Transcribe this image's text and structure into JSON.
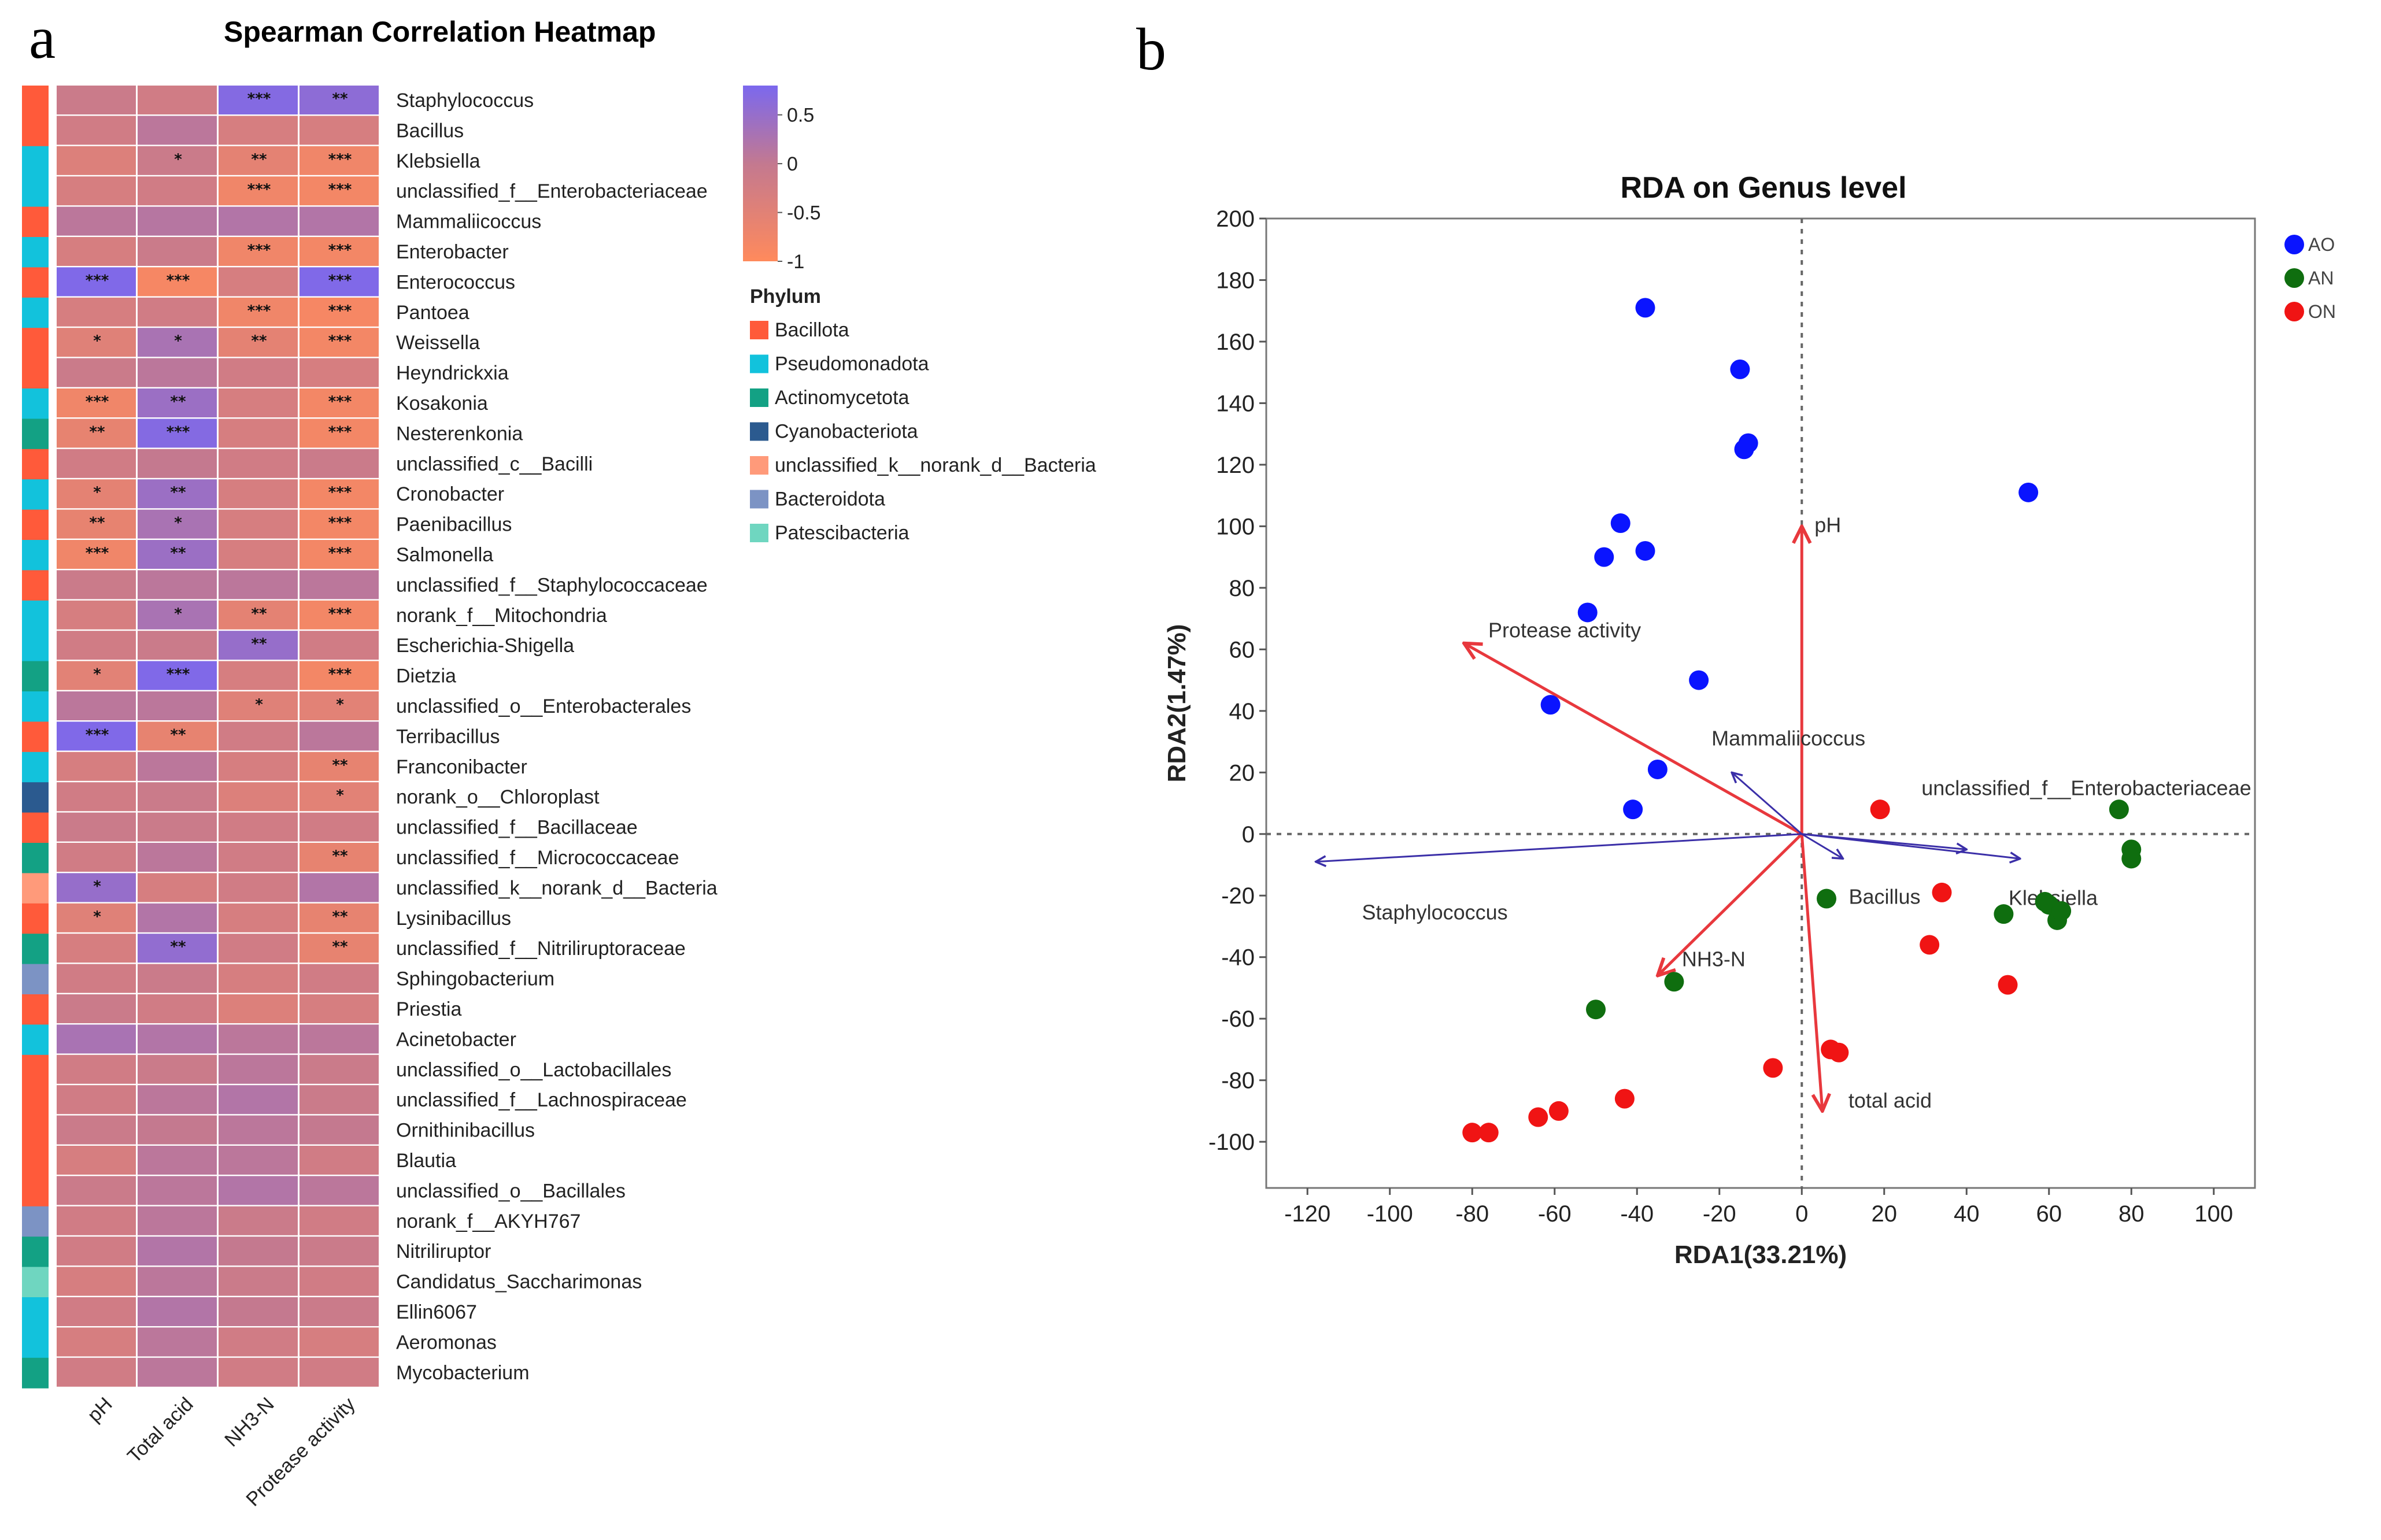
{
  "panels": {
    "a": "a",
    "b": "b"
  },
  "heatmap": {
    "title": "Spearman Correlation Heatmap",
    "columns": [
      "pH",
      "Total acid",
      "NH3-N",
      "Protease activity"
    ],
    "colorbar": {
      "ticks": [
        "0.5",
        "0",
        "-0.5",
        "-1"
      ],
      "range": [
        -1,
        0.8
      ],
      "high_color": "#7b68ee",
      "mid_color": "#c4798f",
      "low_color": "#ff8a5c"
    },
    "phylum_legend_title": "Phylum",
    "phyla": [
      {
        "name": "Bacillota",
        "color": "#ff5a3a"
      },
      {
        "name": "Pseudomonadota",
        "color": "#12c2dc"
      },
      {
        "name": "Actinomycetota",
        "color": "#13a184"
      },
      {
        "name": "Cyanobacteriota",
        "color": "#2b5a8f"
      },
      {
        "name": "unclassified_k__norank_d__Bacteria",
        "color": "#ff9a7a"
      },
      {
        "name": "Bacteroidota",
        "color": "#7c93c4"
      },
      {
        "name": "Patescibacteria",
        "color": "#6fd6c0"
      }
    ],
    "rows": [
      {
        "genus": "Staphylococcus",
        "phylum": 0,
        "values": [
          -0.1,
          -0.2,
          0.7,
          0.6
        ],
        "stars": [
          "",
          "",
          "***",
          "**"
        ]
      },
      {
        "genus": "Bacillus",
        "phylum": 0,
        "values": [
          -0.2,
          0.1,
          -0.3,
          -0.3
        ],
        "stars": [
          "",
          "",
          "",
          ""
        ]
      },
      {
        "genus": "Klebsiella",
        "phylum": 1,
        "values": [
          -0.4,
          -0.1,
          -0.55,
          -0.75
        ],
        "stars": [
          "",
          "*",
          "**",
          "***"
        ]
      },
      {
        "genus": "unclassified_f__Enterobacteriaceae",
        "phylum": 1,
        "values": [
          -0.3,
          -0.2,
          -0.75,
          -0.8
        ],
        "stars": [
          "",
          "",
          "***",
          "***"
        ]
      },
      {
        "genus": "Mammaliicoccus",
        "phylum": 0,
        "values": [
          0.1,
          0.15,
          0.2,
          0.2
        ],
        "stars": [
          "",
          "",
          "",
          ""
        ]
      },
      {
        "genus": "Enterobacter",
        "phylum": 1,
        "values": [
          -0.3,
          -0.1,
          -0.75,
          -0.8
        ],
        "stars": [
          "",
          "",
          "***",
          "***"
        ]
      },
      {
        "genus": "Enterococcus",
        "phylum": 0,
        "values": [
          0.75,
          -0.85,
          -0.3,
          0.75
        ],
        "stars": [
          "***",
          "***",
          "",
          "***"
        ]
      },
      {
        "genus": "Pantoea",
        "phylum": 1,
        "values": [
          -0.3,
          -0.2,
          -0.75,
          -0.85
        ],
        "stars": [
          "",
          "",
          "***",
          "***"
        ]
      },
      {
        "genus": "Weissella",
        "phylum": 0,
        "values": [
          -0.45,
          0.3,
          -0.55,
          -0.8
        ],
        "stars": [
          "*",
          "*",
          "**",
          "***"
        ]
      },
      {
        "genus": "Heyndrickxia",
        "phylum": 0,
        "values": [
          -0.1,
          0.1,
          -0.2,
          -0.3
        ],
        "stars": [
          "",
          "",
          "",
          ""
        ]
      },
      {
        "genus": "Kosakonia",
        "phylum": 1,
        "values": [
          -0.75,
          0.45,
          -0.3,
          -0.8
        ],
        "stars": [
          "***",
          "**",
          "",
          "***"
        ]
      },
      {
        "genus": "Nesterenkonia",
        "phylum": 2,
        "values": [
          -0.6,
          0.7,
          -0.3,
          -0.8
        ],
        "stars": [
          "**",
          "***",
          "",
          "***"
        ]
      },
      {
        "genus": "unclassified_c__Bacilli",
        "phylum": 0,
        "values": [
          -0.2,
          0.0,
          -0.2,
          -0.1
        ],
        "stars": [
          "",
          "",
          "",
          ""
        ]
      },
      {
        "genus": "Cronobacter",
        "phylum": 1,
        "values": [
          -0.55,
          0.45,
          -0.3,
          -0.8
        ],
        "stars": [
          "*",
          "**",
          "",
          "***"
        ]
      },
      {
        "genus": "Paenibacillus",
        "phylum": 0,
        "values": [
          -0.6,
          0.3,
          -0.3,
          -0.8
        ],
        "stars": [
          "**",
          "*",
          "",
          "***"
        ]
      },
      {
        "genus": "Salmonella",
        "phylum": 1,
        "values": [
          -0.75,
          0.45,
          -0.3,
          -0.8
        ],
        "stars": [
          "***",
          "**",
          "",
          "***"
        ]
      },
      {
        "genus": "unclassified_f__Staphylococcaceae",
        "phylum": 0,
        "values": [
          -0.1,
          0.1,
          0.1,
          0.1
        ],
        "stars": [
          "",
          "",
          "",
          ""
        ]
      },
      {
        "genus": "norank_f__Mitochondria",
        "phylum": 1,
        "values": [
          -0.3,
          0.3,
          -0.55,
          -0.8
        ],
        "stars": [
          "",
          "*",
          "**",
          "***"
        ]
      },
      {
        "genus": "Escherichia-Shigella",
        "phylum": 1,
        "values": [
          -0.2,
          -0.1,
          0.5,
          -0.2
        ],
        "stars": [
          "",
          "",
          "**",
          ""
        ]
      },
      {
        "genus": "Dietzia",
        "phylum": 2,
        "values": [
          -0.5,
          0.75,
          -0.3,
          -0.8
        ],
        "stars": [
          "*",
          "***",
          "",
          "***"
        ]
      },
      {
        "genus": "unclassified_o__Enterobacterales",
        "phylum": 1,
        "values": [
          0.1,
          0.1,
          -0.45,
          -0.5
        ],
        "stars": [
          "",
          "",
          "*",
          "*"
        ]
      },
      {
        "genus": "Terribacillus",
        "phylum": 0,
        "values": [
          0.75,
          -0.6,
          -0.2,
          0.1
        ],
        "stars": [
          "***",
          "**",
          "",
          ""
        ]
      },
      {
        "genus": "Franconibacter",
        "phylum": 1,
        "values": [
          -0.3,
          0.1,
          -0.3,
          -0.6
        ],
        "stars": [
          "",
          "",
          "",
          "**"
        ]
      },
      {
        "genus": "norank_o__Chloroplast",
        "phylum": 3,
        "values": [
          -0.2,
          -0.1,
          -0.4,
          -0.5
        ],
        "stars": [
          "",
          "",
          "",
          "*"
        ]
      },
      {
        "genus": "unclassified_f__Bacillaceae",
        "phylum": 0,
        "values": [
          -0.1,
          -0.1,
          -0.2,
          -0.2
        ],
        "stars": [
          "",
          "",
          "",
          ""
        ]
      },
      {
        "genus": "unclassified_f__Micrococcaceae",
        "phylum": 2,
        "values": [
          -0.2,
          0.1,
          -0.2,
          -0.6
        ],
        "stars": [
          "",
          "",
          "",
          "**"
        ]
      },
      {
        "genus": "unclassified_k__norank_d__Bacteria",
        "phylum": 4,
        "values": [
          0.5,
          -0.3,
          -0.2,
          0.2
        ],
        "stars": [
          "*",
          "",
          "",
          ""
        ]
      },
      {
        "genus": "Lysinibacillus",
        "phylum": 0,
        "values": [
          -0.45,
          0.2,
          -0.3,
          -0.6
        ],
        "stars": [
          "*",
          "",
          "",
          "**"
        ]
      },
      {
        "genus": "unclassified_f__Nitriliruptoraceae",
        "phylum": 2,
        "values": [
          -0.3,
          0.55,
          -0.2,
          -0.6
        ],
        "stars": [
          "",
          "**",
          "",
          "**"
        ]
      },
      {
        "genus": "Sphingobacterium",
        "phylum": 5,
        "values": [
          -0.2,
          -0.1,
          -0.3,
          -0.2
        ],
        "stars": [
          "",
          "",
          "",
          ""
        ]
      },
      {
        "genus": "Priestia",
        "phylum": 0,
        "values": [
          -0.1,
          -0.2,
          -0.4,
          -0.3
        ],
        "stars": [
          "",
          "",
          "",
          ""
        ]
      },
      {
        "genus": "Acinetobacter",
        "phylum": 1,
        "values": [
          0.3,
          0.2,
          0.1,
          0.1
        ],
        "stars": [
          "",
          "",
          "",
          ""
        ]
      },
      {
        "genus": "unclassified_o__Lactobacillales",
        "phylum": 0,
        "values": [
          -0.2,
          -0.1,
          0.1,
          -0.1
        ],
        "stars": [
          "",
          "",
          "",
          ""
        ]
      },
      {
        "genus": "unclassified_f__Lachnospiraceae",
        "phylum": 0,
        "values": [
          -0.2,
          0.1,
          0.2,
          -0.1
        ],
        "stars": [
          "",
          "",
          "",
          ""
        ]
      },
      {
        "genus": "Ornithinibacillus",
        "phylum": 0,
        "values": [
          -0.1,
          0.0,
          0.1,
          0.0
        ],
        "stars": [
          "",
          "",
          "",
          ""
        ]
      },
      {
        "genus": "Blautia",
        "phylum": 0,
        "values": [
          -0.3,
          0.1,
          0.1,
          -0.2
        ],
        "stars": [
          "",
          "",
          "",
          ""
        ]
      },
      {
        "genus": "unclassified_o__Bacillales",
        "phylum": 0,
        "values": [
          -0.1,
          0.1,
          0.2,
          0.1
        ],
        "stars": [
          "",
          "",
          "",
          ""
        ]
      },
      {
        "genus": "norank_f__AKYH767",
        "phylum": 5,
        "values": [
          -0.2,
          0.1,
          -0.1,
          -0.2
        ],
        "stars": [
          "",
          "",
          "",
          ""
        ]
      },
      {
        "genus": "Nitriliruptor",
        "phylum": 2,
        "values": [
          -0.2,
          0.2,
          0.0,
          -0.1
        ],
        "stars": [
          "",
          "",
          "",
          ""
        ]
      },
      {
        "genus": "Candidatus_Saccharimonas",
        "phylum": 6,
        "values": [
          -0.3,
          0.1,
          -0.1,
          -0.2
        ],
        "stars": [
          "",
          "",
          "",
          ""
        ]
      },
      {
        "genus": "Ellin6067",
        "phylum": 1,
        "values": [
          -0.2,
          0.2,
          0.0,
          -0.1
        ],
        "stars": [
          "",
          "",
          "",
          ""
        ]
      },
      {
        "genus": "Aeromonas",
        "phylum": 1,
        "values": [
          -0.3,
          0.1,
          -0.2,
          -0.3
        ],
        "stars": [
          "",
          "",
          "",
          ""
        ]
      },
      {
        "genus": "Mycobacterium",
        "phylum": 2,
        "values": [
          -0.2,
          0.1,
          -0.2,
          -0.2
        ],
        "stars": [
          "",
          "",
          "",
          ""
        ]
      }
    ]
  },
  "chart_data": {
    "type": "scatter",
    "title": "RDA on Genus level",
    "xlabel": "RDA1(33.21%)",
    "ylabel": "RDA2(1.47%)",
    "xlim": [
      -130,
      110
    ],
    "ylim": [
      -115,
      200
    ],
    "xticks": [
      -120,
      -100,
      -80,
      -60,
      -40,
      -20,
      0,
      20,
      40,
      60,
      80,
      100
    ],
    "yticks": [
      -100,
      -80,
      -60,
      -40,
      -20,
      0,
      20,
      40,
      60,
      80,
      100,
      120,
      140,
      160,
      180,
      200
    ],
    "series": [
      {
        "name": "AO",
        "color": "#0a14ff",
        "points": [
          [
            -38,
            171
          ],
          [
            -15,
            151
          ],
          [
            -14,
            125
          ],
          [
            -13,
            127
          ],
          [
            55,
            111
          ],
          [
            -44,
            101
          ],
          [
            -48,
            90
          ],
          [
            -38,
            92
          ],
          [
            -52,
            72
          ],
          [
            -25,
            50
          ],
          [
            -61,
            42
          ],
          [
            -35,
            21
          ],
          [
            -41,
            8
          ]
        ]
      },
      {
        "name": "AN",
        "color": "#0f6e0f",
        "points": [
          [
            77,
            8
          ],
          [
            80,
            -5
          ],
          [
            80,
            -8
          ],
          [
            59,
            -22
          ],
          [
            60,
            -23
          ],
          [
            62,
            -28
          ],
          [
            63,
            -25
          ],
          [
            49,
            -26
          ],
          [
            6,
            -21
          ],
          [
            -31,
            -48
          ],
          [
            -50,
            -57
          ]
        ]
      },
      {
        "name": "ON",
        "color": "#f01414",
        "points": [
          [
            19,
            8
          ],
          [
            34,
            -19
          ],
          [
            31,
            -36
          ],
          [
            50,
            -49
          ],
          [
            7,
            -70
          ],
          [
            9,
            -71
          ],
          [
            -7,
            -76
          ],
          [
            -43,
            -86
          ],
          [
            -59,
            -90
          ],
          [
            -64,
            -92
          ],
          [
            -76,
            -97
          ],
          [
            -80,
            -97
          ]
        ]
      }
    ],
    "env_vectors": [
      {
        "name": "pH",
        "x": 0,
        "y": 100,
        "color": "#e8383d"
      },
      {
        "name": "Protease activity",
        "x": -82,
        "y": 62,
        "color": "#e8383d"
      },
      {
        "name": "NH3-N",
        "x": -35,
        "y": -46,
        "color": "#e8383d"
      },
      {
        "name": "total acid",
        "x": 5,
        "y": -90,
        "color": "#e8383d"
      }
    ],
    "species_vectors": [
      {
        "name": "Staphylococcus",
        "x": -118,
        "y": -9,
        "color": "#3b2fa8"
      },
      {
        "name": "Mammaliicoccus",
        "x": -17,
        "y": 20,
        "color": "#3b2fa8"
      },
      {
        "name": "Bacillus",
        "x": 10,
        "y": -8,
        "color": "#3b2fa8"
      },
      {
        "name": "Klebsiella",
        "x": 53,
        "y": -8,
        "color": "#3b2fa8"
      },
      {
        "name": "unclassified_f__Enterobacteriaceae",
        "x": 40,
        "y": -5,
        "color": "#3b2fa8"
      }
    ]
  }
}
